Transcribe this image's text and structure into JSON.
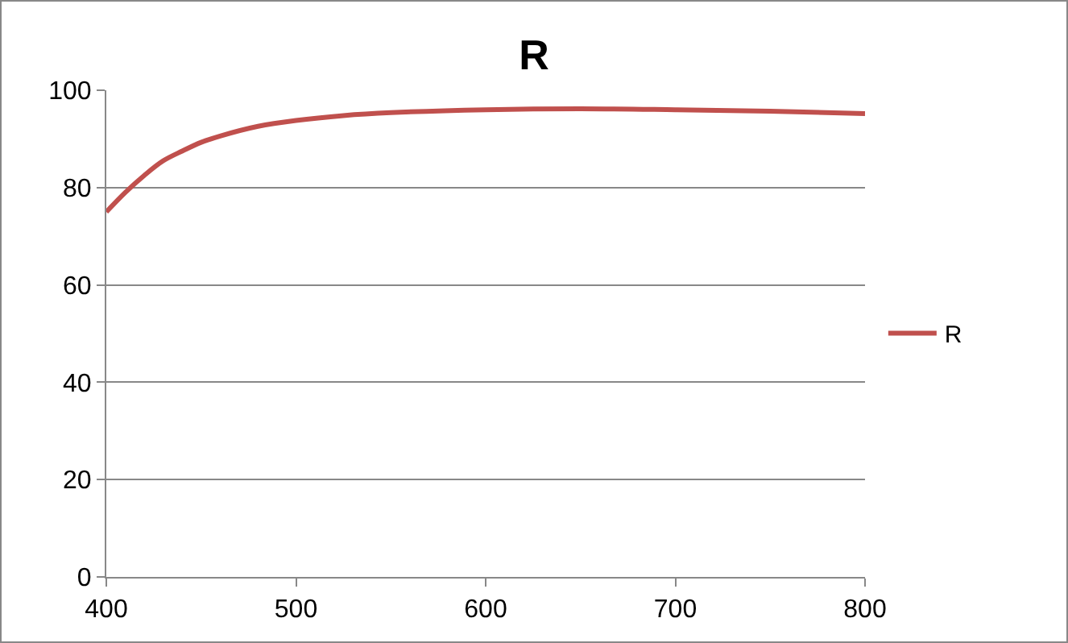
{
  "chart_data": {
    "type": "line",
    "title": "R",
    "x": [
      400,
      410,
      420,
      430,
      440,
      450,
      460,
      480,
      500,
      525,
      550,
      600,
      650,
      700,
      750,
      800
    ],
    "series": [
      {
        "name": "R",
        "color": "#c0504d",
        "values": [
          75,
          79,
          82.5,
          85.5,
          87.5,
          89.3,
          90.6,
          92.6,
          93.8,
          94.8,
          95.4,
          96,
          96.2,
          96,
          95.7,
          95.2
        ]
      }
    ],
    "xlim": [
      400,
      800
    ],
    "xticks": [
      400,
      500,
      600,
      700,
      800
    ],
    "ylim": [
      0,
      100
    ],
    "yticks": [
      0,
      20,
      40,
      60,
      80,
      100
    ],
    "grid": "y",
    "legend": "right",
    "marker": "none",
    "line_style": "solid"
  }
}
